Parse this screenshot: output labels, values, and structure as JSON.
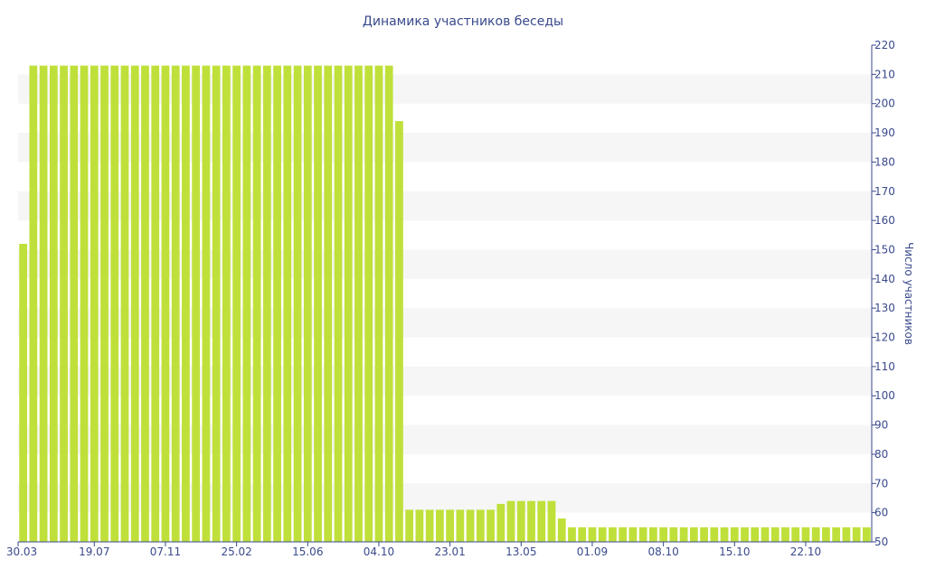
{
  "chart_data": {
    "type": "bar",
    "title": "Динамика участников беседы",
    "xlabel": "",
    "ylabel": "Число участников",
    "ylim": [
      50,
      220
    ],
    "yticks": [
      50,
      60,
      70,
      80,
      90,
      100,
      110,
      120,
      130,
      140,
      150,
      160,
      170,
      180,
      190,
      200,
      210,
      220
    ],
    "y_axis_side": "right",
    "grid": "alternating horizontal bands",
    "x_tick_labels": [
      {
        "label": "30.03",
        "index": 0
      },
      {
        "label": "19.07",
        "index": 7
      },
      {
        "label": "07.11",
        "index": 14
      },
      {
        "label": "25.02",
        "index": 21
      },
      {
        "label": "15.06",
        "index": 28
      },
      {
        "label": "04.10",
        "index": 35
      },
      {
        "label": "23.01",
        "index": 42
      },
      {
        "label": "13.05",
        "index": 49
      },
      {
        "label": "01.09",
        "index": 56
      },
      {
        "label": "08.10",
        "index": 63
      },
      {
        "label": "15.10",
        "index": 70
      },
      {
        "label": "22.10",
        "index": 77
      }
    ],
    "values": [
      152,
      213,
      213,
      213,
      213,
      213,
      213,
      213,
      213,
      213,
      213,
      213,
      213,
      213,
      213,
      213,
      213,
      213,
      213,
      213,
      213,
      213,
      213,
      213,
      213,
      213,
      213,
      213,
      213,
      213,
      213,
      213,
      213,
      213,
      213,
      213,
      213,
      194,
      61,
      61,
      61,
      61,
      61,
      61,
      61,
      61,
      61,
      63,
      64,
      64,
      64,
      64,
      64,
      58,
      55,
      55,
      55,
      55,
      55,
      55,
      55,
      55,
      55,
      55,
      55,
      55,
      55,
      55,
      55,
      55,
      55,
      55,
      55,
      55,
      55,
      55,
      55,
      55,
      55,
      55,
      55,
      55,
      55,
      55
    ],
    "colors": {
      "bar": "#bfe03a",
      "band": "#f6f6f6",
      "axis": "#3a4a8c",
      "text": "#3a4a8c"
    }
  }
}
